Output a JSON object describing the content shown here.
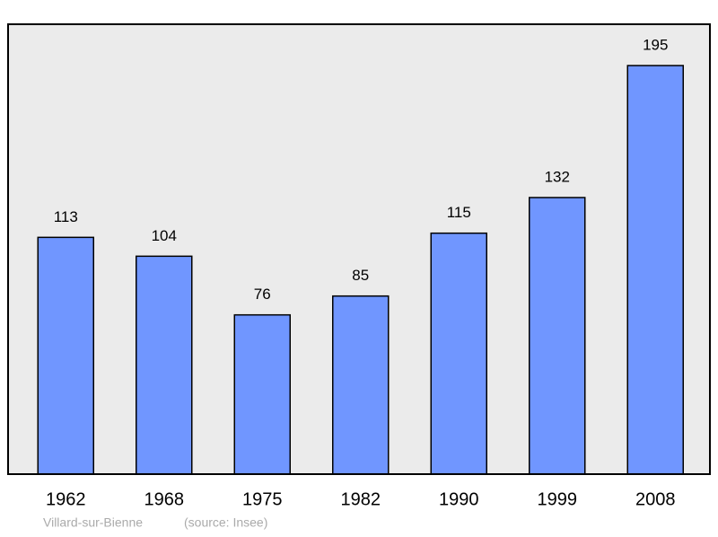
{
  "chart_data": {
    "type": "bar",
    "categories": [
      "1962",
      "1968",
      "1975",
      "1982",
      "1990",
      "1999",
      "2008"
    ],
    "values": [
      113,
      104,
      76,
      85,
      115,
      132,
      195
    ],
    "color": "#7096ff",
    "caption": "Villard-sur-Bienne",
    "source": "(source: Insee)"
  }
}
